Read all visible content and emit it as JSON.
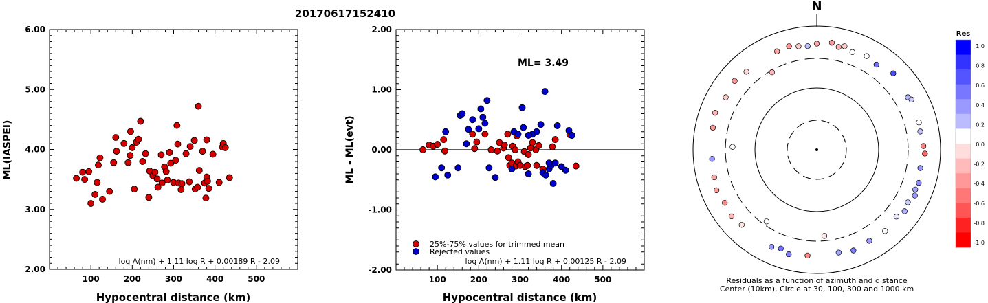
{
  "page_title": "20170617152410",
  "chart_data": [
    {
      "type": "scatter",
      "id": "ml-vs-distance",
      "title": "",
      "xlabel": "Hypocentral distance (km)",
      "ylabel": "ML(IASPEI)",
      "xlim": [
        0,
        600
      ],
      "ylim": [
        2.0,
        6.0
      ],
      "xticks": [
        "100",
        "200",
        "300",
        "400",
        "500"
      ],
      "xtick_values": [
        100,
        200,
        300,
        400,
        500
      ],
      "yticks": [
        "2.00",
        "3.00",
        "4.00",
        "5.00",
        "6.00"
      ],
      "ytick_values": [
        2,
        3,
        4,
        5,
        6
      ],
      "formula": "log A(nm) + 1.11 log R + 0.00189 R - 2.09",
      "marker_color": "#d40000",
      "points": [
        [
          65,
          3.52
        ],
        [
          80,
          3.62
        ],
        [
          85,
          3.5
        ],
        [
          95,
          3.63
        ],
        [
          100,
          3.1
        ],
        [
          110,
          3.25
        ],
        [
          115,
          3.45
        ],
        [
          118,
          3.74
        ],
        [
          122,
          3.86
        ],
        [
          128,
          3.17
        ],
        [
          145,
          3.3
        ],
        [
          155,
          3.78
        ],
        [
          160,
          4.2
        ],
        [
          162,
          3.97
        ],
        [
          180,
          4.1
        ],
        [
          190,
          3.78
        ],
        [
          195,
          3.9
        ],
        [
          196,
          4.3
        ],
        [
          200,
          4.03
        ],
        [
          205,
          3.34
        ],
        [
          210,
          4.12
        ],
        [
          215,
          4.17
        ],
        [
          220,
          4.47
        ],
        [
          225,
          3.8
        ],
        [
          232,
          3.93
        ],
        [
          240,
          3.2
        ],
        [
          242,
          3.64
        ],
        [
          250,
          3.56
        ],
        [
          255,
          3.62
        ],
        [
          260,
          3.51
        ],
        [
          262,
          3.37
        ],
        [
          270,
          3.91
        ],
        [
          272,
          3.44
        ],
        [
          278,
          3.71
        ],
        [
          282,
          3.63
        ],
        [
          285,
          3.49
        ],
        [
          290,
          3.95
        ],
        [
          293,
          3.77
        ],
        [
          300,
          3.45
        ],
        [
          305,
          3.82
        ],
        [
          308,
          4.4
        ],
        [
          310,
          4.09
        ],
        [
          312,
          3.44
        ],
        [
          318,
          3.33
        ],
        [
          320,
          3.43
        ],
        [
          330,
          3.93
        ],
        [
          338,
          3.46
        ],
        [
          340,
          4.05
        ],
        [
          350,
          4.15
        ],
        [
          352,
          3.34
        ],
        [
          358,
          3.37
        ],
        [
          360,
          4.72
        ],
        [
          362,
          3.65
        ],
        [
          370,
          3.97
        ],
        [
          375,
          3.44
        ],
        [
          378,
          3.19
        ],
        [
          380,
          3.54
        ],
        [
          382,
          3.47
        ],
        [
          385,
          3.35
        ],
        [
          395,
          3.92
        ],
        [
          410,
          3.45
        ],
        [
          418,
          4.04
        ],
        [
          420,
          4.1
        ],
        [
          425,
          4.03
        ],
        [
          435,
          3.53
        ],
        [
          380,
          4.16
        ]
      ]
    },
    {
      "type": "scatter",
      "id": "residual-vs-distance",
      "title": "",
      "xlabel": "Hypocentral distance (km)",
      "ylabel": "ML - ML(evt)",
      "xlim": [
        0,
        600
      ],
      "ylim": [
        -2.0,
        2.0
      ],
      "xticks": [
        "100",
        "200",
        "300",
        "400",
        "500"
      ],
      "xtick_values": [
        100,
        200,
        300,
        400,
        500
      ],
      "yticks": [
        "-2.00",
        "-1.00",
        "0.00",
        "1.00",
        "2.00"
      ],
      "ytick_values": [
        -2,
        -1,
        0,
        1,
        2
      ],
      "annotation": "ML= 3.49",
      "formula": "log A(nm) + 1.11 log R + 0.00125 R - 2.09",
      "legend": [
        {
          "label": "25%-75% values for trimmed mean",
          "color": "#d40000"
        },
        {
          "label": "Rejected values",
          "color": "#0000cc"
        }
      ],
      "series": [
        {
          "name": "25%-75% values for trimmed mean",
          "color": "#d40000",
          "points": [
            [
              65,
              0.0
            ],
            [
              80,
              0.08
            ],
            [
              90,
              0.06
            ],
            [
              100,
              0.09
            ],
            [
              115,
              0.17
            ],
            [
              118,
              -0.02
            ],
            [
              185,
              0.26
            ],
            [
              190,
              0.02
            ],
            [
              195,
              0.13
            ],
            [
              215,
              0.26
            ],
            [
              230,
              0.0
            ],
            [
              245,
              -0.02
            ],
            [
              250,
              0.12
            ],
            [
              260,
              0.03
            ],
            [
              262,
              0.08
            ],
            [
              270,
              0.26
            ],
            [
              272,
              -0.13
            ],
            [
              275,
              -0.26
            ],
            [
              280,
              -0.22
            ],
            [
              282,
              0.06
            ],
            [
              288,
              0.0
            ],
            [
              290,
              -0.27
            ],
            [
              292,
              0.23
            ],
            [
              295,
              -0.2
            ],
            [
              300,
              -0.26
            ],
            [
              310,
              -0.03
            ],
            [
              312,
              -0.28
            ],
            [
              318,
              -0.26
            ],
            [
              320,
              -0.08
            ],
            [
              325,
              0.03
            ],
            [
              330,
              0.12
            ],
            [
              338,
              0.0
            ],
            [
              340,
              -0.26
            ],
            [
              345,
              0.07
            ],
            [
              355,
              -0.32
            ],
            [
              378,
              0.05
            ],
            [
              385,
              0.17
            ],
            [
              420,
              0.25
            ],
            [
              425,
              0.24
            ],
            [
              435,
              -0.27
            ]
          ]
        },
        {
          "name": "Rejected values",
          "color": "#0000cc",
          "points": [
            [
              95,
              -0.45
            ],
            [
              110,
              -0.3
            ],
            [
              120,
              0.3
            ],
            [
              125,
              -0.42
            ],
            [
              150,
              -0.3
            ],
            [
              155,
              0.57
            ],
            [
              160,
              0.6
            ],
            [
              170,
              0.1
            ],
            [
              175,
              0.34
            ],
            [
              185,
              0.5
            ],
            [
              200,
              0.35
            ],
            [
              205,
              0.68
            ],
            [
              210,
              0.54
            ],
            [
              215,
              0.44
            ],
            [
              220,
              0.82
            ],
            [
              240,
              -0.46
            ],
            [
              280,
              -0.32
            ],
            [
              285,
              0.3
            ],
            [
              295,
              0.26
            ],
            [
              305,
              0.7
            ],
            [
              308,
              0.37
            ],
            [
              320,
              -0.4
            ],
            [
              330,
              0.26
            ],
            [
              340,
              0.3
            ],
            [
              350,
              0.42
            ],
            [
              355,
              -0.38
            ],
            [
              360,
              0.97
            ],
            [
              362,
              -0.42
            ],
            [
              370,
              -0.32
            ],
            [
              375,
              -0.26
            ],
            [
              380,
              -0.56
            ],
            [
              385,
              -0.22
            ],
            [
              390,
              0.4
            ],
            [
              400,
              -0.28
            ],
            [
              410,
              -0.34
            ],
            [
              418,
              0.32
            ],
            [
              425,
              0.24
            ],
            [
              370,
              -0.22
            ],
            [
              320,
              0.24
            ],
            [
              225,
              -0.3
            ]
          ]
        }
      ]
    },
    {
      "type": "scatter",
      "id": "azimuth-distance-plot",
      "title": "N",
      "caption": [
        "Residuals as a function of azimuth and distance",
        "Center (10km), Circle at 30, 100, 300 and 1000 km"
      ],
      "colorbar_title": "Res",
      "colorbar_ticks": [
        "1.0",
        "0.8",
        "0.6",
        "0.4",
        "0.2",
        "0.0",
        "-0.2",
        "-0.4",
        "-0.6",
        "-0.8",
        "-1.0"
      ],
      "colorbar_tick_values": [
        1.0,
        0.8,
        0.6,
        0.4,
        0.2,
        0.0,
        -0.2,
        -0.4,
        -0.6,
        -0.8,
        -1.0
      ],
      "colorbar_colors": [
        "#0000ff",
        "#3333ff",
        "#5555ff",
        "#7777ff",
        "#9999ff",
        "#bbbbff",
        "#ffffff",
        "#ffdddd",
        "#ffbbbb",
        "#ff9999",
        "#ff7777",
        "#ff5555",
        "#ff2222",
        "#ff0000"
      ],
      "circles_km": [
        30,
        100,
        300,
        1000
      ],
      "stations": [
        {
          "az": 0,
          "dist": 520,
          "res": -0.35
        },
        {
          "az": 8,
          "dist": 560,
          "res": -0.4
        },
        {
          "az": 12,
          "dist": 500,
          "res": -0.3
        },
        {
          "az": 15,
          "dist": 540,
          "res": -0.2
        },
        {
          "az": 20,
          "dist": 480,
          "res": 0.0
        },
        {
          "az": 28,
          "dist": 520,
          "res": 0.0
        },
        {
          "az": 35,
          "dist": 480,
          "res": 0.55
        },
        {
          "az": 45,
          "dist": 560,
          "res": 0.7
        },
        {
          "az": 60,
          "dist": 500,
          "res": 0.3
        },
        {
          "az": 62,
          "dist": 540,
          "res": 0.2
        },
        {
          "az": 75,
          "dist": 510,
          "res": 0.0
        },
        {
          "az": 80,
          "dist": 500,
          "res": 0.25
        },
        {
          "az": 88,
          "dist": 530,
          "res": -0.5
        },
        {
          "az": 92,
          "dist": 560,
          "res": -0.6
        },
        {
          "az": 100,
          "dist": 500,
          "res": 0.4
        },
        {
          "az": 108,
          "dist": 540,
          "res": 0.45
        },
        {
          "az": 112,
          "dist": 520,
          "res": 0.35
        },
        {
          "az": 115,
          "dist": 560,
          "res": 0.4
        },
        {
          "az": 120,
          "dist": 500,
          "res": 0.2
        },
        {
          "az": 125,
          "dist": 540,
          "res": 0.3
        },
        {
          "az": 130,
          "dist": 480,
          "res": 0.1
        },
        {
          "az": 140,
          "dist": 520,
          "res": 0.0
        },
        {
          "az": 150,
          "dist": 500,
          "res": 0.4
        },
        {
          "az": 160,
          "dist": 540,
          "res": 0.5
        },
        {
          "az": 168,
          "dist": 500,
          "res": 0.35
        },
        {
          "az": 175,
          "dist": 250,
          "res": -0.1
        },
        {
          "az": 185,
          "dist": 520,
          "res": -0.45
        },
        {
          "az": 195,
          "dist": 560,
          "res": 0.5
        },
        {
          "az": 200,
          "dist": 500,
          "res": 0.55
        },
        {
          "az": 205,
          "dist": 540,
          "res": 0.4
        },
        {
          "az": 215,
          "dist": 260,
          "res": 0.0
        },
        {
          "az": 225,
          "dist": 520,
          "res": -0.1
        },
        {
          "az": 232,
          "dist": 560,
          "res": -0.3
        },
        {
          "az": 240,
          "dist": 520,
          "res": -0.45
        },
        {
          "az": 248,
          "dist": 560,
          "res": -0.4
        },
        {
          "az": 255,
          "dist": 520,
          "res": -0.35
        },
        {
          "az": 265,
          "dist": 500,
          "res": 0.4
        },
        {
          "az": 272,
          "dist": 230,
          "res": 0.0
        },
        {
          "az": 282,
          "dist": 520,
          "res": -0.4
        },
        {
          "az": 290,
          "dist": 560,
          "res": -0.3
        },
        {
          "az": 300,
          "dist": 500,
          "res": -0.2
        },
        {
          "az": 310,
          "dist": 540,
          "res": -0.4
        },
        {
          "az": 318,
          "dist": 500,
          "res": -0.15
        },
        {
          "az": 330,
          "dist": 280,
          "res": -0.3
        },
        {
          "az": 338,
          "dist": 520,
          "res": -0.35
        },
        {
          "az": 345,
          "dist": 540,
          "res": -0.4
        },
        {
          "az": 350,
          "dist": 500,
          "res": -0.2
        },
        {
          "az": 355,
          "dist": 480,
          "res": 0.25
        }
      ]
    }
  ]
}
